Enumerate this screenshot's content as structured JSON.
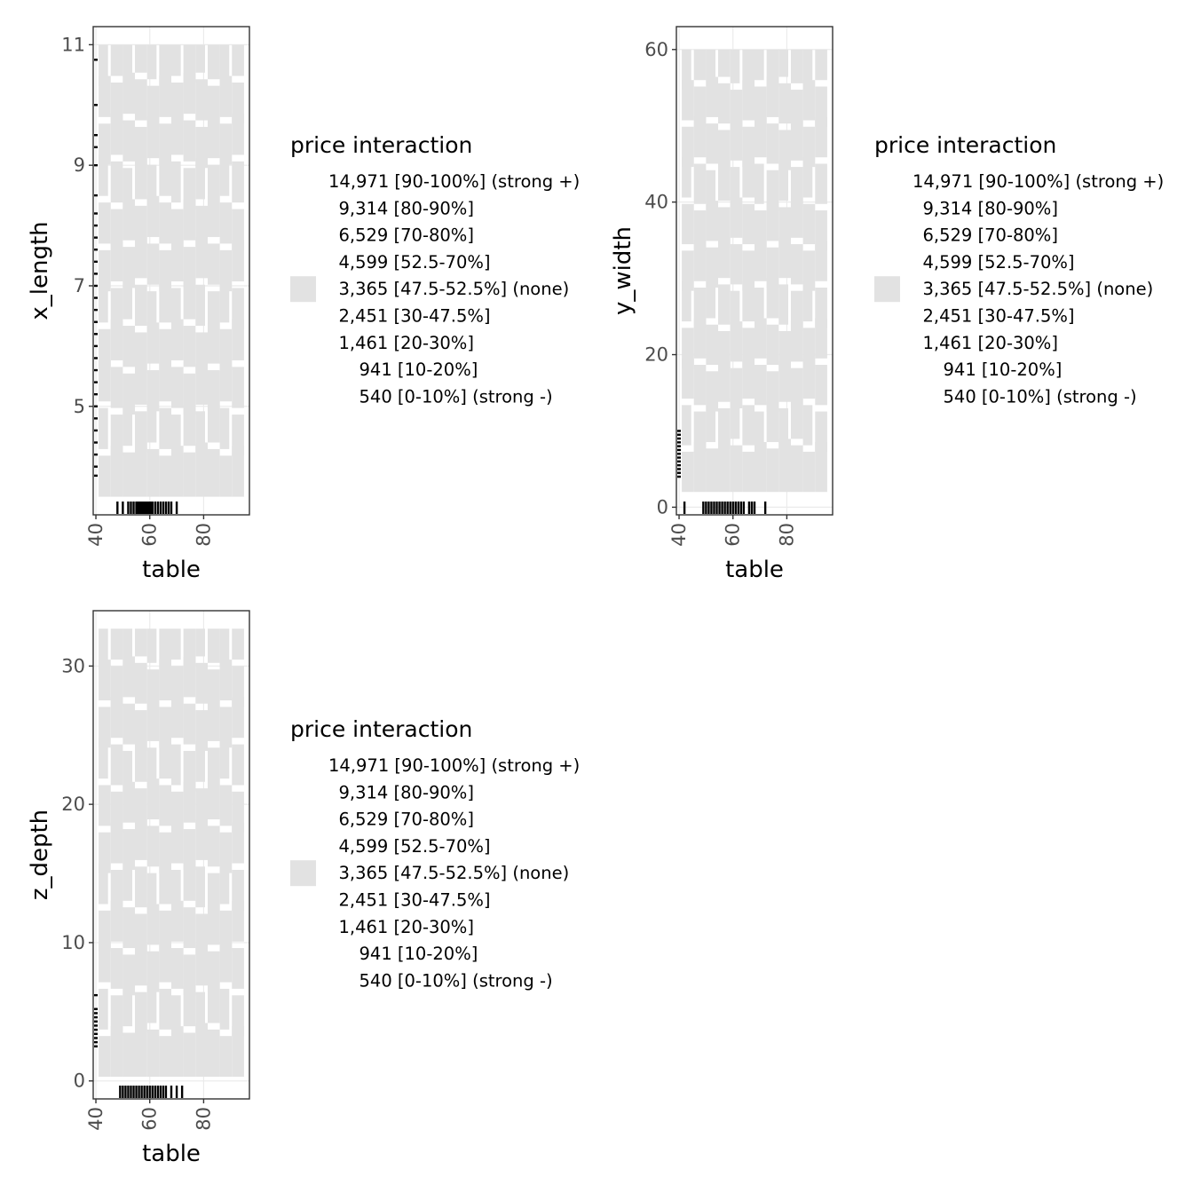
{
  "colors": {
    "tile_fill": "#e2e2e2",
    "rug": "#000000",
    "panel_border": "#333333",
    "grid": "#ebebeb",
    "tick_text": "#4d4d4d"
  },
  "legend": {
    "title": "price interaction",
    "labels": [
      "14,971 [90-100%] (strong +)",
      "9,314 [80-90%]",
      "6,529 [70-80%]",
      "4,599 [52.5-70%]",
      "3,365 [47.5-52.5%] (none)",
      "2,451 [30-47.5%]",
      "1,461 [20-30%]",
      "941 [10-20%]",
      "540 [0-10%] (strong -)"
    ],
    "swatch_index": 4
  },
  "chart_data": [
    {
      "type": "heatmap",
      "title": "",
      "xlabel": "table",
      "ylabel": "x_length",
      "xlim": [
        39,
        97
      ],
      "ylim": [
        3.2,
        11.3
      ],
      "xticks": [
        40,
        60,
        80
      ],
      "yticks": [
        5,
        7,
        9,
        11
      ],
      "tile_value": "3,365 [47.5-52.5%] (none)",
      "tile_region": {
        "x_min": 41,
        "x_max": 95,
        "y_min": 3.5,
        "y_max": 11.0
      },
      "rug_x": [
        48,
        50,
        52,
        53,
        54,
        55,
        55.5,
        56,
        56.5,
        57,
        57.5,
        58,
        58.5,
        59,
        59.5,
        60,
        60.5,
        61,
        62,
        63,
        64,
        65,
        66,
        67,
        68,
        70
      ],
      "rug_y": [
        3.85,
        4.0,
        4.2,
        4.4,
        4.6,
        4.8,
        5.0,
        5.2,
        5.4,
        5.6,
        5.8,
        6.0,
        6.2,
        6.4,
        6.6,
        6.8,
        7.0,
        7.2,
        7.4,
        7.6,
        7.8,
        8.0,
        8.2,
        8.5,
        9.0,
        9.3,
        9.5,
        10.0,
        10.75
      ],
      "grid": true,
      "legend_position": "right"
    },
    {
      "type": "heatmap",
      "title": "",
      "xlabel": "table",
      "ylabel": "y_width",
      "xlim": [
        39,
        97
      ],
      "ylim": [
        -1,
        63
      ],
      "xticks": [
        40,
        60,
        80
      ],
      "yticks": [
        0,
        20,
        40,
        60
      ],
      "tile_value": "3,365 [47.5-52.5%] (none)",
      "tile_region": {
        "x_min": 41,
        "x_max": 95,
        "y_min": 2,
        "y_max": 60
      },
      "rug_x": [
        42,
        49,
        50,
        51,
        52,
        53,
        54,
        55,
        56,
        57,
        58,
        59,
        60,
        61,
        62,
        63,
        64,
        66,
        67,
        68,
        72
      ],
      "rug_y": [
        4.0,
        4.5,
        5.0,
        5.5,
        6.0,
        6.5,
        7.0,
        7.5,
        8.0,
        8.5,
        9.0,
        9.5,
        10.0
      ],
      "grid": true,
      "legend_position": "right"
    },
    {
      "type": "heatmap",
      "title": "",
      "xlabel": "table",
      "ylabel": "z_depth",
      "xlim": [
        39,
        97
      ],
      "ylim": [
        -1.3,
        34
      ],
      "xticks": [
        40,
        60,
        80
      ],
      "yticks": [
        0,
        10,
        20,
        30
      ],
      "tile_value": "3,365 [47.5-52.5%] (none)",
      "tile_region": {
        "x_min": 41,
        "x_max": 95,
        "y_min": 0.3,
        "y_max": 32.7
      },
      "rug_x": [
        49,
        50,
        51,
        52,
        53,
        54,
        55,
        56,
        57,
        58,
        59,
        60,
        61,
        62,
        63,
        64,
        65,
        66,
        68,
        70,
        72
      ],
      "rug_y": [
        2.5,
        2.8,
        3.1,
        3.4,
        3.7,
        4.0,
        4.3,
        4.6,
        4.9,
        5.2,
        6.2
      ],
      "grid": true,
      "legend_position": "right"
    }
  ]
}
